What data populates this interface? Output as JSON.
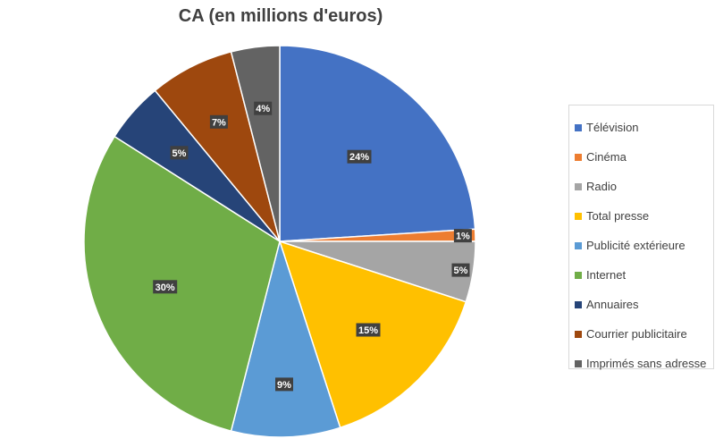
{
  "chart_data": {
    "type": "pie",
    "title": "CA (en millions d'euros)",
    "categories": [
      "Télévision",
      "Cinéma",
      "Radio",
      "Total presse",
      "Publicité extérieure",
      "Internet",
      "Annuaires",
      "Courrier publicitaire",
      "Imprimés sans adresse"
    ],
    "values": [
      24,
      1,
      5,
      15,
      9,
      30,
      5,
      7,
      4
    ],
    "data_labels": [
      "24%",
      "1%",
      "5%",
      "15%",
      "9%",
      "30%",
      "5%",
      "7%",
      "4%"
    ],
    "colors": [
      "#4472C4",
      "#ED7D31",
      "#A5A5A5",
      "#FFC000",
      "#5B9BD5",
      "#70AD47",
      "#264478",
      "#9E480E",
      "#636363"
    ],
    "legend_position": "right"
  }
}
